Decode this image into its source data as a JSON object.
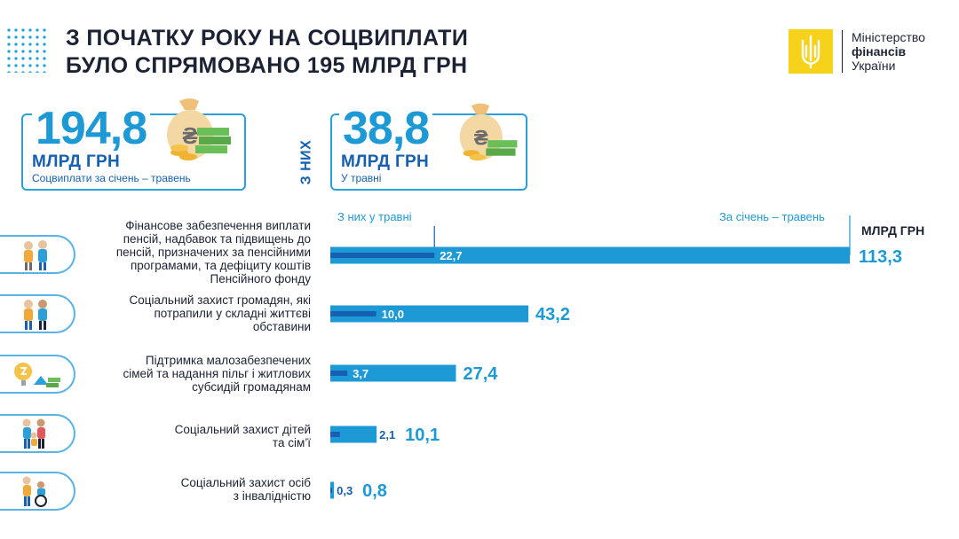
{
  "header": {
    "title_line1": "З ПОЧАТКУ РОКУ НА СОЦВИПЛАТИ",
    "title_line2": "БУЛО СПРЯМОВАНО 195 МЛРД ГРН"
  },
  "ministry": {
    "line1": "Міністерство",
    "line2": "фінансів",
    "line3": "України"
  },
  "kpi_total": {
    "value": "194,8",
    "unit": "МЛРД ГРН",
    "caption": "Соцвиплати за січень – травень"
  },
  "kpi_divider": "З НИХ",
  "kpi_may": {
    "value": "38,8",
    "unit": "МЛРД ГРН",
    "caption": "У травні"
  },
  "colors": {
    "total_bar": "#1d9ad6",
    "may_bar": "#1560b0",
    "value_text": "#1d9ad6",
    "outline": "#5ab2e6"
  },
  "chart_data": {
    "type": "bar",
    "orientation": "horizontal",
    "unit": "МЛРД ГРН",
    "categories": [
      "Фінансове забезпечення виплати пенсій, надбавок та підвищень до пенсій, призначених за пенсійними програмами, та дефіциту коштів Пенсійного фонду",
      "Соціальний захист громадян, які потрапили у складні життєві обставини",
      "Підтримка малозабезпечених сімей та надання пільг і житлових субсидій громадянам",
      "Соціальний захист дітей та сім’ї",
      "Соціальний захист осіб з інвалідністю"
    ],
    "label_lines": [
      [
        "Фінансове забезпечення виплати",
        "пенсій, надбавок та підвищень до",
        "пенсій, призначених за пенсійними",
        "програмами, та дефіциту коштів",
        "Пенсійного фонду"
      ],
      [
        "Соціальний захист громадян, які",
        "потрапили у складні життєві",
        "обставини"
      ],
      [
        "Підтримка малозабезпечених",
        "сімей та надання пільг і житлових",
        "субсидій громадянам"
      ],
      [
        "Соціальний захист дітей",
        "та сім’ї"
      ],
      [
        "Соціальний захист осіб",
        "з інвалідністю"
      ]
    ],
    "icons": [
      "pensioners-icon",
      "people-in-need-icon",
      "subsidy-icon",
      "family-icon",
      "disability-icon"
    ],
    "series": [
      {
        "name": "За січень – травень",
        "values": [
          113.3,
          43.2,
          27.4,
          10.1,
          0.8
        ],
        "labels": [
          "113,3",
          "43,2",
          "27,4",
          "10,1",
          "0,8"
        ]
      },
      {
        "name": "З них у травні",
        "values": [
          22.7,
          10.0,
          3.7,
          2.1,
          0.3
        ],
        "labels": [
          "22,7",
          "10,0",
          "3,7",
          "2,1",
          "0,3"
        ]
      }
    ],
    "legend": [
      "З них у травні",
      "За січень – травень"
    ]
  }
}
